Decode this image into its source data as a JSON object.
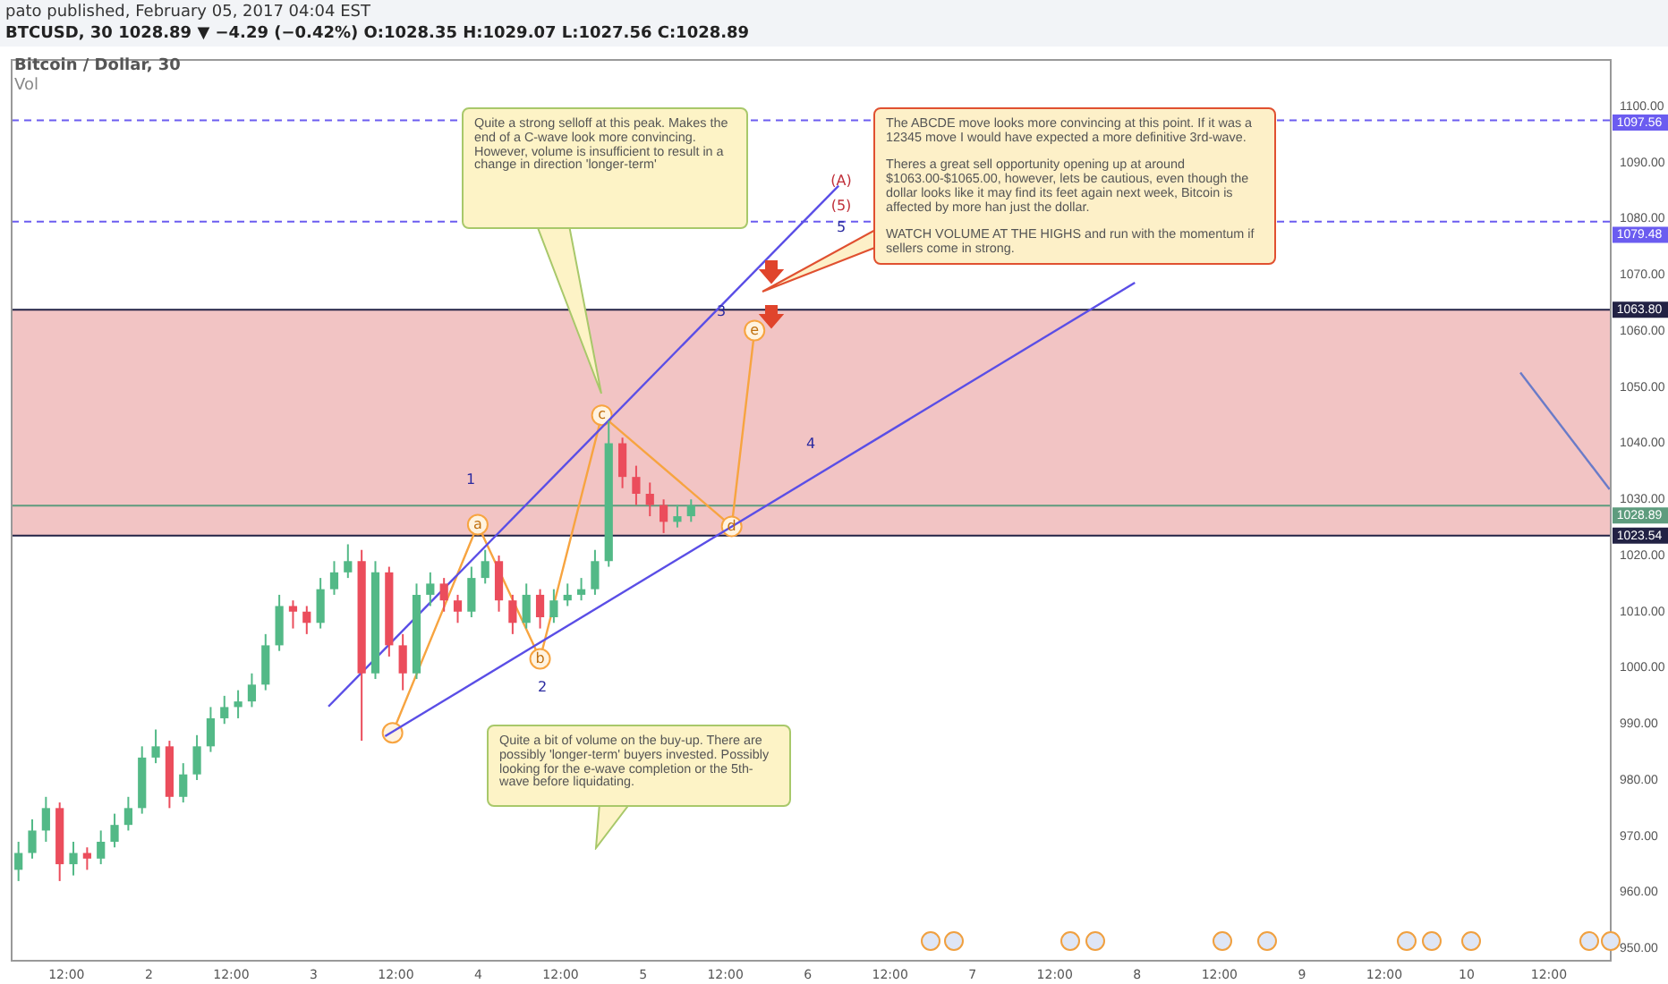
{
  "chart_data": {
    "type": "candlestick",
    "title": "Bitcoin / Dollar, 30",
    "subtitle": "BTCUSD, 30 1028.89 ▼ −4.29 (−0.42%) O:1028.35 H:1029.07 L:1027.56 C:1028.89",
    "x": [
      "2017-02-01T05:00",
      "2017-02-01T07:00",
      "2017-02-01T09:00",
      "2017-02-01T11:00",
      "2017-02-01T13:00",
      "2017-02-01T15:00",
      "2017-02-01T17:00",
      "2017-02-01T19:00",
      "2017-02-01T21:00",
      "2017-02-01T23:00",
      "2017-02-02T01:00",
      "2017-02-02T03:00",
      "2017-02-02T05:00",
      "2017-02-02T07:00",
      "2017-02-02T09:00",
      "2017-02-02T11:00",
      "2017-02-02T13:00",
      "2017-02-02T15:00",
      "2017-02-02T17:00",
      "2017-02-02T19:00",
      "2017-02-02T21:00",
      "2017-02-02T23:00",
      "2017-02-03T01:00",
      "2017-02-03T03:00",
      "2017-02-03T05:00",
      "2017-02-03T07:00",
      "2017-02-03T09:00",
      "2017-02-03T11:00",
      "2017-02-03T13:00",
      "2017-02-03T15:00",
      "2017-02-03T17:00",
      "2017-02-03T19:00",
      "2017-02-03T21:00",
      "2017-02-03T23:00",
      "2017-02-04T01:00",
      "2017-02-04T03:00",
      "2017-02-04T05:00",
      "2017-02-04T07:00",
      "2017-02-04T09:00",
      "2017-02-04T11:00",
      "2017-02-04T13:00",
      "2017-02-04T15:00",
      "2017-02-04T17:00",
      "2017-02-04T19:00",
      "2017-02-04T21:00",
      "2017-02-04T23:00",
      "2017-02-05T01:00",
      "2017-02-05T03:00",
      "2017-02-05T05:00",
      "2017-02-05T07:00"
    ],
    "ohlc": [
      [
        964,
        969,
        962,
        967
      ],
      [
        967,
        973,
        966,
        971
      ],
      [
        971,
        977,
        969,
        975
      ],
      [
        975,
        976,
        962,
        965
      ],
      [
        965,
        969,
        963,
        967
      ],
      [
        967,
        968,
        964,
        966
      ],
      [
        966,
        971,
        965,
        969
      ],
      [
        969,
        974,
        968,
        972
      ],
      [
        972,
        977,
        971,
        975
      ],
      [
        975,
        986,
        974,
        984
      ],
      [
        984,
        989,
        983,
        986
      ],
      [
        986,
        987,
        975,
        977
      ],
      [
        977,
        983,
        976,
        981
      ],
      [
        981,
        988,
        980,
        986
      ],
      [
        986,
        993,
        985,
        991
      ],
      [
        991,
        995,
        990,
        993
      ],
      [
        993,
        996,
        991,
        994
      ],
      [
        994,
        999,
        993,
        997
      ],
      [
        997,
        1006,
        996,
        1004
      ],
      [
        1004,
        1013,
        1003,
        1011
      ],
      [
        1011,
        1012,
        1007,
        1010
      ],
      [
        1010,
        1011,
        1006,
        1008
      ],
      [
        1008,
        1016,
        1007,
        1014
      ],
      [
        1014,
        1019,
        1013,
        1017
      ],
      [
        1017,
        1022,
        1016,
        1019
      ],
      [
        1019,
        1021,
        987,
        999
      ],
      [
        999,
        1019,
        998,
        1017
      ],
      [
        1017,
        1018,
        1002,
        1004
      ],
      [
        1004,
        1006,
        996,
        999
      ],
      [
        999,
        1015,
        998,
        1013
      ],
      [
        1013,
        1017,
        1011,
        1015
      ],
      [
        1015,
        1016,
        1010,
        1012
      ],
      [
        1012,
        1013,
        1008,
        1010
      ],
      [
        1010,
        1018,
        1009,
        1016
      ],
      [
        1016,
        1021,
        1015,
        1019
      ],
      [
        1019,
        1020,
        1010,
        1012
      ],
      [
        1012,
        1013,
        1006,
        1008
      ],
      [
        1008,
        1015,
        1007,
        1013
      ],
      [
        1013,
        1014,
        1007,
        1009
      ],
      [
        1009,
        1014,
        1008,
        1012
      ],
      [
        1012,
        1015,
        1011,
        1013
      ],
      [
        1013,
        1016,
        1012,
        1014
      ],
      [
        1014,
        1021,
        1013,
        1019
      ],
      [
        1019,
        1044,
        1018,
        1040
      ],
      [
        1040,
        1041,
        1032,
        1034
      ],
      [
        1034,
        1036,
        1029,
        1031
      ],
      [
        1031,
        1033,
        1027,
        1029
      ],
      [
        1029,
        1030,
        1024,
        1026
      ],
      [
        1026,
        1029,
        1025,
        1027
      ],
      [
        1027,
        1030,
        1026,
        1028.89
      ]
    ],
    "colors": [
      "#53b987",
      "#53b987",
      "#53b987",
      "#eb4d5c",
      "#53b987",
      "#eb4d5c",
      "#53b987",
      "#53b987",
      "#53b987",
      "#53b987",
      "#53b987",
      "#eb4d5c",
      "#53b987",
      "#53b987",
      "#53b987",
      "#53b987",
      "#53b987",
      "#53b987",
      "#53b987",
      "#53b987",
      "#eb4d5c",
      "#eb4d5c",
      "#53b987",
      "#53b987",
      "#53b987",
      "#eb4d5c",
      "#53b987",
      "#eb4d5c",
      "#eb4d5c",
      "#53b987",
      "#53b987",
      "#eb4d5c",
      "#eb4d5c",
      "#53b987",
      "#53b987",
      "#eb4d5c",
      "#eb4d5c",
      "#53b987",
      "#eb4d5c",
      "#53b987",
      "#53b987",
      "#53b987",
      "#53b987",
      "#53b987",
      "#eb4d5c",
      "#eb4d5c",
      "#eb4d5c",
      "#eb4d5c",
      "#53b987",
      "#53b987"
    ],
    "series": [
      {
        "type": "line",
        "color": "#5a4ee6",
        "x": [
          "2017-02-03T02:10",
          "2017-02-06T04:30"
        ],
        "values": [
          993.1,
          1085.9
        ]
      },
      {
        "type": "line",
        "color": "#5a4ee6",
        "x": [
          "2017-02-03T10:25",
          "2017-02-07T23:40"
        ],
        "values": [
          987.8,
          1068.6
        ]
      },
      {
        "type": "line",
        "color": "#6a7bc8",
        "x": [
          "2017-02-10T07:50",
          "2017-02-10T20:50"
        ],
        "values": [
          1052.6,
          1031.8
        ]
      },
      {
        "type": "line",
        "color": "#f7a440",
        "marker": "circle",
        "x": [
          "2017-02-03T11:30",
          "2017-02-03T23:55",
          "2017-02-04T09:00",
          "2017-02-04T18:00",
          "2017-02-05T12:55",
          "2017-02-05T16:15"
        ],
        "values": [
          988.4,
          1025.5,
          1001.6,
          1045,
          1025.2,
          1060.1
        ]
      }
    ],
    "xlim": [
      "2017-02-01T04:00",
      "2017-02-10T21:00"
    ],
    "xticks": [
      {
        "value": "2017-02-01T12:00",
        "label": "12:00"
      },
      {
        "value": "2017-02-02",
        "label": "2"
      },
      {
        "value": "2017-02-02T12:00",
        "label": "12:00"
      },
      {
        "value": "2017-02-03",
        "label": "3"
      },
      {
        "value": "2017-02-03T12:00",
        "label": "12:00"
      },
      {
        "value": "2017-02-04",
        "label": "4"
      },
      {
        "value": "2017-02-04T12:00",
        "label": "12:00"
      },
      {
        "value": "2017-02-05",
        "label": "5"
      },
      {
        "value": "2017-02-05T12:00",
        "label": "12:00"
      },
      {
        "value": "2017-02-06",
        "label": "6"
      },
      {
        "value": "2017-02-06T12:00",
        "label": "12:00"
      },
      {
        "value": "2017-02-07",
        "label": "7"
      },
      {
        "value": "2017-02-07T12:00",
        "label": "12:00"
      },
      {
        "value": "2017-02-08",
        "label": "8"
      },
      {
        "value": "2017-02-08T12:00",
        "label": "12:00"
      },
      {
        "value": "2017-02-09",
        "label": "9"
      },
      {
        "value": "2017-02-09T12:00",
        "label": "12:00"
      },
      {
        "value": "2017-02-10",
        "label": "10"
      },
      {
        "value": "2017-02-10T12:00",
        "label": "12:00"
      }
    ],
    "ylim": [
      947.8,
      1108.3
    ],
    "yticks": [
      {
        "value": 950,
        "label": "950.00"
      },
      {
        "value": 960,
        "label": "960.00"
      },
      {
        "value": 970,
        "label": "970.00"
      },
      {
        "value": 980,
        "label": "980.00"
      },
      {
        "value": 990,
        "label": "990.00"
      },
      {
        "value": 1000,
        "label": "1000.00"
      },
      {
        "value": 1010,
        "label": "1010.00"
      },
      {
        "value": 1020,
        "label": "1020.00"
      },
      {
        "value": 1030,
        "label": "1030.00"
      },
      {
        "value": 1040,
        "label": "1040.00"
      },
      {
        "value": 1050,
        "label": "1050.00"
      },
      {
        "value": 1060,
        "label": "1060.00"
      },
      {
        "value": 1070,
        "label": "1070.00"
      },
      {
        "value": 1080,
        "label": "1080.00"
      },
      {
        "value": 1090,
        "label": "1090.00"
      },
      {
        "value": 1100,
        "label": "1100.00"
      }
    ],
    "grid": false,
    "legend": false,
    "bands": [
      {
        "axis": "y",
        "from": 1023.54,
        "to": 1063.8,
        "color": "#f2c4c4"
      }
    ],
    "ref_lines": [
      {
        "axis": "y",
        "value": 1097.56,
        "label": "1097.56",
        "color": "#6b5cf0",
        "line_style": "dashed"
      },
      {
        "axis": "y",
        "value": 1079.48,
        "label": "1079.48",
        "color": "#6b5cf0",
        "line_style": "dashed"
      },
      {
        "axis": "y",
        "value": 1063.8,
        "label": "1063.80",
        "color": "#222244",
        "line_style": "solid"
      },
      {
        "axis": "y",
        "value": 1028.89,
        "label": "1028.89",
        "color": "#5e9c7e",
        "line_style": "solid"
      },
      {
        "axis": "y",
        "value": 1023.54,
        "label": "1023.54",
        "color": "#222244",
        "line_style": "solid"
      }
    ],
    "annotations": [
      "pato published, February 05, 2017 04:04 EST",
      "Vol",
      "Quite a strong selloff at this peak. Makes the end of a C-wave look more convincing. However, volume is insufficient to result in a change in direction 'longer-term'",
      "Quite a bit of volume on the buy-up. There are possibly 'longer-term' buyers invested. Possibly looking for the e-wave completion or the 5th-wave before liquidating.",
      "The ABCDE move looks more convincing at this point. If it was a 12345 move I would have expected a more definitive 3rd-wave.\n\nTheres a great sell opportunity opening up at around $1063.00-$1065.00, however, lets be cautious, even though the dollar looks like it may find its feet again next week, Bitcoin is affected by more han just the dollar.\n\nWATCH VOLUME AT THE HIGHS and run with the momentum if sellers come in strong.",
      {
        "text": "a",
        "x": "2017-02-03T23:55",
        "y": 1025.5
      },
      {
        "text": "b",
        "x": "2017-02-04T09:00",
        "y": 1001.6
      },
      {
        "text": "c",
        "x": "2017-02-04T18:00",
        "y": 1045
      },
      {
        "text": "d",
        "x": "2017-02-05T12:55",
        "y": 1025.2
      },
      {
        "text": "e",
        "x": "2017-02-05T16:15",
        "y": 1060.1
      },
      "1",
      "2",
      "3",
      "4",
      "5",
      "(A)",
      "(5)"
    ]
  }
}
